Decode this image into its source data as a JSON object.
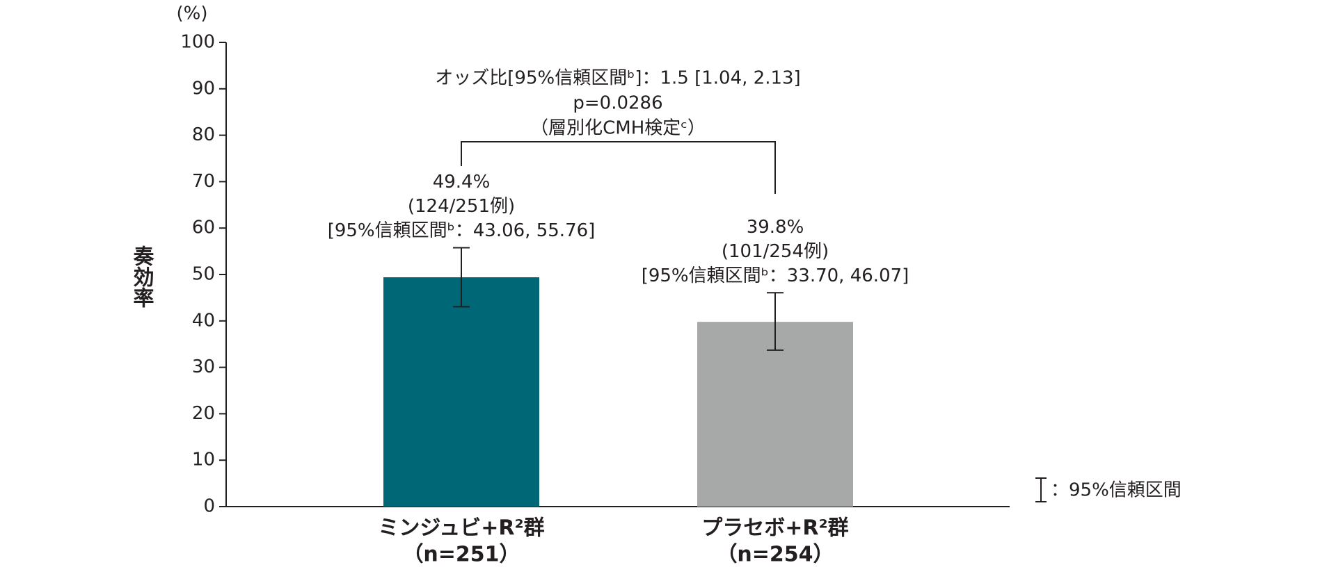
{
  "chart_data": {
    "type": "bar",
    "y_label": "奏効率",
    "y_unit": "(%)",
    "categories": [
      "ミンジュビ+R²群",
      "プラセボ+R²群"
    ],
    "sublabels": [
      "（n=251）",
      "（n=254）"
    ],
    "series": [
      {
        "colors": [
          "#006776",
          "#a7a9a8"
        ],
        "values": [
          49.4,
          39.8
        ],
        "value_labels": [
          "49.4%",
          "39.8%"
        ],
        "ci_low": [
          43.06,
          33.7
        ],
        "ci_high": [
          55.76,
          46.07
        ],
        "counts": [
          "(124/251例)",
          "(101/254例)"
        ],
        "ci_labels": [
          "[95%信頼区間ᵇ：43.06, 55.76]",
          "[95%信頼区間ᵇ：33.70, 46.07]"
        ]
      }
    ],
    "comparison": [
      "オッズ比[95%信頼区間ᵇ]：1.5 [1.04, 2.13]",
      "p=0.0286",
      "（層別化CMH検定ᶜ）"
    ],
    "legend": "：95%信頼区間",
    "ylim": [
      0,
      100
    ],
    "yticks": [
      0,
      10,
      20,
      30,
      40,
      50,
      60,
      70,
      80,
      90,
      100
    ]
  }
}
